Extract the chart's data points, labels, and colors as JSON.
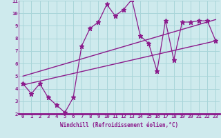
{
  "xlabel": "Windchill (Refroidissement éolien,°C)",
  "xlim": [
    -0.5,
    23.5
  ],
  "ylim": [
    2,
    11
  ],
  "xticks": [
    0,
    1,
    2,
    3,
    4,
    5,
    6,
    7,
    8,
    9,
    10,
    11,
    12,
    13,
    14,
    15,
    16,
    17,
    18,
    19,
    20,
    21,
    22,
    23
  ],
  "yticks": [
    2,
    3,
    4,
    5,
    6,
    7,
    8,
    9,
    10,
    11
  ],
  "bg_color": "#ceeaed",
  "grid_color": "#a8d5d9",
  "line_color": "#8b1a8b",
  "zigzag_x": [
    0,
    1,
    2,
    3,
    4,
    5,
    6,
    7,
    8,
    9,
    10,
    11,
    12,
    13,
    14,
    15,
    16,
    17,
    18,
    19,
    20,
    21,
    22,
    23
  ],
  "zigzag_y": [
    4.4,
    3.6,
    4.4,
    3.3,
    2.7,
    2.1,
    3.3,
    7.4,
    8.8,
    9.3,
    10.7,
    9.8,
    10.3,
    11.1,
    8.2,
    7.6,
    5.4,
    9.4,
    6.3,
    9.3,
    9.3,
    9.4,
    9.4,
    7.8
  ],
  "line1_x": [
    0,
    23
  ],
  "line1_y": [
    4.3,
    7.8
  ],
  "line2_x": [
    0,
    23
  ],
  "line2_y": [
    5.0,
    9.5
  ],
  "axis_bar_color": "#8b1a8b",
  "tick_fontsize": 5.2,
  "xlabel_fontsize": 5.5
}
